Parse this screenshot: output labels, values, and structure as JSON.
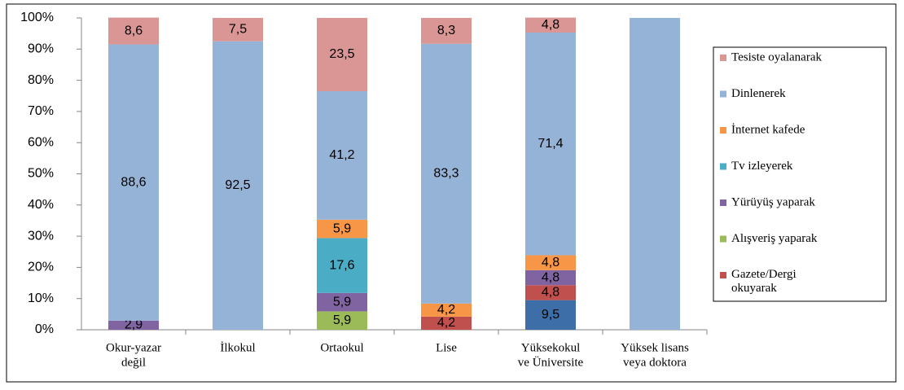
{
  "chart_data": {
    "type": "stacked_bar",
    "categories": [
      [
        "Okur-yazar",
        "değil"
      ],
      [
        "İlkokul"
      ],
      [
        "Ortaokul"
      ],
      [
        "Lise"
      ],
      [
        "Yüksekokul",
        "ve Üniversite"
      ],
      [
        "Yüksek lisans",
        "veya doktora"
      ]
    ],
    "series": [
      {
        "color": "#3e6ea8",
        "values": [
          null,
          null,
          null,
          null,
          9.5,
          null
        ],
        "value_labels": [
          null,
          null,
          null,
          null,
          "9,5",
          null
        ]
      },
      {
        "name": "Gazete/Dergi okuyarak",
        "color": "#c0504d",
        "values": [
          null,
          null,
          null,
          4.2,
          4.8,
          null
        ],
        "value_labels": [
          null,
          null,
          null,
          "4,2",
          "4,8",
          null
        ]
      },
      {
        "name": "Alışveriş yaparak",
        "color": "#9bbb59",
        "values": [
          null,
          null,
          5.9,
          null,
          null,
          null
        ],
        "value_labels": [
          null,
          null,
          "5,9",
          null,
          null,
          null
        ]
      },
      {
        "name": "Yürüyüş yaparak",
        "color": "#8064a2",
        "values": [
          2.9,
          null,
          5.9,
          null,
          4.8,
          null
        ],
        "value_labels": [
          "2,9",
          null,
          "5,9",
          null,
          "4,8",
          null
        ]
      },
      {
        "name": "Tv izleyerek",
        "color": "#4bacc6",
        "values": [
          null,
          null,
          17.6,
          null,
          null,
          null
        ],
        "value_labels": [
          null,
          null,
          "17,6",
          null,
          null,
          null
        ]
      },
      {
        "name": "İnternet kafede",
        "color": "#f79646",
        "values": [
          null,
          null,
          5.9,
          4.2,
          4.8,
          null
        ],
        "value_labels": [
          null,
          null,
          "5,9",
          "4,2",
          "4,8",
          null
        ]
      },
      {
        "name": "Dinlenerek",
        "color": "#95b3d7",
        "values": [
          88.6,
          92.5,
          41.2,
          83.3,
          71.4,
          100
        ],
        "value_labels": [
          "88,6",
          "92,5",
          "41,2",
          "83,3",
          "71,4",
          null
        ]
      },
      {
        "name": "Tesiste oyalanarak",
        "color": "#d99694",
        "values": [
          8.6,
          7.5,
          23.5,
          8.3,
          4.8,
          null
        ],
        "value_labels": [
          "8,6",
          "7,5",
          "23,5",
          "8,3",
          "4,8",
          null
        ]
      }
    ],
    "ylim": [
      0,
      100
    ],
    "yticks": [
      {
        "value": 0,
        "label": "0%"
      },
      {
        "value": 10,
        "label": "10%"
      },
      {
        "value": 20,
        "label": "20%"
      },
      {
        "value": 30,
        "label": "30%"
      },
      {
        "value": 40,
        "label": "40%"
      },
      {
        "value": 50,
        "label": "50%"
      },
      {
        "value": 60,
        "label": "60%"
      },
      {
        "value": 70,
        "label": "70%"
      },
      {
        "value": 80,
        "label": "80%"
      },
      {
        "value": 90,
        "label": "90%"
      },
      {
        "value": 100,
        "label": "100%"
      }
    ],
    "grid": false,
    "legend": "right"
  }
}
